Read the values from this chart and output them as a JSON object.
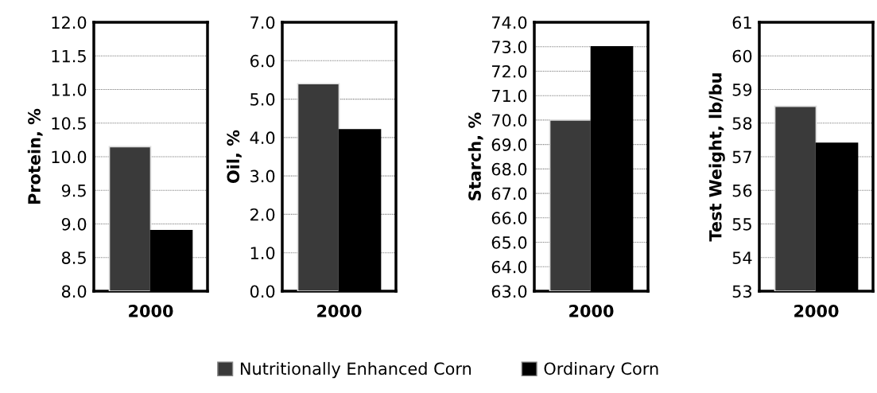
{
  "chart_data": [
    {
      "type": "bar",
      "ylabel": "Protein, %",
      "categories": [
        "2000"
      ],
      "ylim": [
        8.0,
        12.0
      ],
      "yticks": [
        {
          "value": 8.0,
          "label": "8.0"
        },
        {
          "value": 8.5,
          "label": "8.5"
        },
        {
          "value": 9.0,
          "label": "9.0"
        },
        {
          "value": 9.5,
          "label": "9.5"
        },
        {
          "value": 10.0,
          "label": "10.0"
        },
        {
          "value": 10.5,
          "label": "10.5"
        },
        {
          "value": 11.0,
          "label": "11.0"
        },
        {
          "value": 11.5,
          "label": "11.5"
        },
        {
          "value": 12.0,
          "label": "12.0"
        }
      ],
      "grid": "y",
      "legend": "bottom",
      "series": [
        {
          "name": "Nutritionally Enhanced Corn",
          "color": "#3a3a3a",
          "values": [
            10.15
          ]
        },
        {
          "name": "Ordinary Corn",
          "color": "#000000",
          "values": [
            8.9
          ]
        }
      ]
    },
    {
      "type": "bar",
      "ylabel": "Oil, %",
      "categories": [
        "2000"
      ],
      "ylim": [
        0.0,
        7.0
      ],
      "yticks": [
        {
          "value": 0,
          "label": "0.0"
        },
        {
          "value": 1,
          "label": "1.0"
        },
        {
          "value": 2,
          "label": "2.0"
        },
        {
          "value": 3,
          "label": "3.0"
        },
        {
          "value": 4,
          "label": "4.0"
        },
        {
          "value": 5,
          "label": "5.0"
        },
        {
          "value": 6,
          "label": "6.0"
        },
        {
          "value": 7,
          "label": "7.0"
        }
      ],
      "grid": "y",
      "series": [
        {
          "color": "#3a3a3a",
          "values": [
            5.4
          ]
        },
        {
          "color": "#000000",
          "values": [
            4.2
          ]
        }
      ]
    },
    {
      "type": "bar",
      "ylabel": "Starch, %",
      "categories": [
        "2000"
      ],
      "ylim": [
        63.0,
        74.0
      ],
      "yticks": [
        {
          "value": 63,
          "label": "63.0"
        },
        {
          "value": 64,
          "label": "64.0"
        },
        {
          "value": 65,
          "label": "65.0"
        },
        {
          "value": 66,
          "label": "66.0"
        },
        {
          "value": 67,
          "label": "67.0"
        },
        {
          "value": 68,
          "label": "68.0"
        },
        {
          "value": 69,
          "label": "69.0"
        },
        {
          "value": 70,
          "label": "70.0"
        },
        {
          "value": 71,
          "label": "71.0"
        },
        {
          "value": 72,
          "label": "72.0"
        },
        {
          "value": 73,
          "label": "73.0"
        },
        {
          "value": 74,
          "label": "74.0"
        }
      ],
      "grid": "y",
      "series": [
        {
          "color": "#3a3a3a",
          "values": [
            70.0
          ]
        },
        {
          "color": "#000000",
          "values": [
            73.0
          ]
        }
      ]
    },
    {
      "type": "bar",
      "ylabel": "Test Weight, lb/bu",
      "categories": [
        "2000"
      ],
      "ylim": [
        53,
        61
      ],
      "yticks": [
        53,
        54,
        55,
        56,
        57,
        58,
        59,
        60,
        61
      ],
      "grid": "y",
      "series": [
        {
          "color": "#3a3a3a",
          "values": [
            58.5
          ]
        },
        {
          "color": "#000000",
          "values": [
            57.4
          ]
        }
      ]
    }
  ]
}
